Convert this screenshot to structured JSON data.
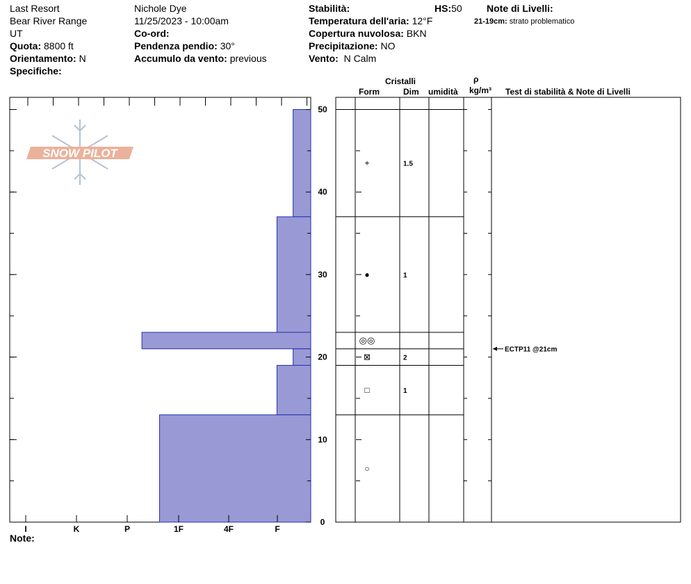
{
  "header": {
    "location": "Last Resort",
    "range": "Bear River Range",
    "state": "UT",
    "elevation_label": "Quota:",
    "elevation_value": "8800 ft",
    "aspect_label": "Orientamento:",
    "aspect_value": "N",
    "specifics_label": "Specifiche:",
    "observer": "Nichole Dye",
    "datetime": "11/25/2023 - 10:00am",
    "coord_label": "Co-ord:",
    "slope_label": "Pendenza pendio:",
    "slope_value": "30°",
    "wind_loading_label": "Accumulo da vento:",
    "wind_loading_value": "previous",
    "stability_label": "Stabilità:",
    "hs_label": "HS:",
    "hs_value": "50",
    "air_temp_label": "Temperatura dell'aria:",
    "air_temp_value": "12°F",
    "sky_label": "Copertura nuvolosa:",
    "sky_value": "BKN",
    "precip_label": "Precipitazione:",
    "precip_value": "NO",
    "wind_label": "Vento:",
    "wind_value": "N Calm",
    "layer_notes_label": "Note di Livelli:",
    "layer_note_depth": "21-19cm:",
    "layer_note_text": "strato problematico"
  },
  "logo_text": "SNOW PILOT",
  "table_headers": {
    "crystals": "Cristalli",
    "form": "Form",
    "dim": "Dim",
    "moisture": "umidità",
    "rho": "ρ",
    "density": "kg/m³",
    "tests": "Test di stabilità & Note di Livelli"
  },
  "notes_label": "Note:",
  "chart_data": {
    "type": "bar",
    "orientation": "horizontal",
    "description_hardness_axis": [
      "I",
      "K",
      "P",
      "1F",
      "4F",
      "F"
    ],
    "y_axis": {
      "min": 0,
      "max": 50,
      "ticks": [
        "0",
        "10",
        "20",
        "30",
        "40",
        "50"
      ],
      "unit": "cm"
    },
    "layers": [
      {
        "top": 50,
        "bottom": 37,
        "hardness": "F",
        "hardness_value": 0.35,
        "form": "+",
        "form_name": "precipitation-particles",
        "size": "1.5"
      },
      {
        "top": 37,
        "bottom": 23,
        "hardness": "F",
        "hardness_value": 0.67,
        "form": "●",
        "form_name": "rounded-grains",
        "size": "1"
      },
      {
        "top": 23,
        "bottom": 21,
        "hardness": "1F+",
        "hardness_value": 3.35,
        "form": "◎◎",
        "form_name": "melt-forms",
        "size": ""
      },
      {
        "top": 21,
        "bottom": 19,
        "hardness": "F",
        "hardness_value": 0.35,
        "form": "⊠",
        "form_name": "faceted-rounded",
        "size": "2"
      },
      {
        "top": 19,
        "bottom": 13,
        "hardness": "F",
        "hardness_value": 0.67,
        "form": "□",
        "form_name": "faceted-crystals",
        "size": "1"
      },
      {
        "top": 13,
        "bottom": 0,
        "hardness": "1F",
        "hardness_value": 3.0,
        "form": "○",
        "form_name": "decomposing-fragments",
        "size": ""
      }
    ],
    "stability_tests": [
      {
        "depth": 21,
        "label": "ECTP11 @21cm"
      }
    ]
  },
  "colors": {
    "bar_fill": "#9999d6",
    "bar_stroke": "#2233aa",
    "logo": "#e8a48a"
  }
}
